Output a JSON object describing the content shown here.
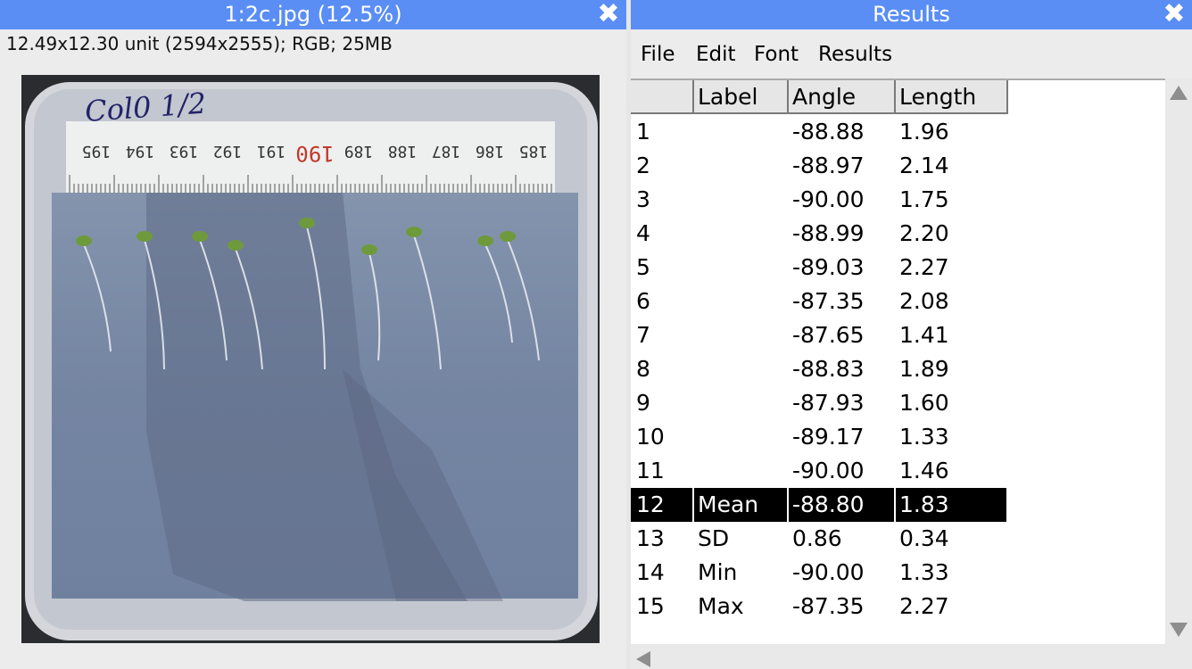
{
  "image_window": {
    "title": "1:2c.jpg (12.5%)",
    "info": "12.49x12.30 unit (2594x2555); RGB; 25MB",
    "handwriting": "Col0 1/2",
    "ruler_numbers": [
      "195",
      "194",
      "193",
      "192",
      "191",
      "190",
      "189",
      "188",
      "187",
      "186",
      "185"
    ]
  },
  "results_window": {
    "title": "Results",
    "menu": [
      "File",
      "Edit",
      "Font",
      "Results"
    ],
    "columns": [
      "",
      "Label",
      "Angle",
      "Length"
    ],
    "rows": [
      {
        "n": "1",
        "label": "",
        "angle": "-88.88",
        "length": "1.96"
      },
      {
        "n": "2",
        "label": "",
        "angle": "-88.97",
        "length": "2.14"
      },
      {
        "n": "3",
        "label": "",
        "angle": "-90.00",
        "length": "1.75"
      },
      {
        "n": "4",
        "label": "",
        "angle": "-88.99",
        "length": "2.20"
      },
      {
        "n": "5",
        "label": "",
        "angle": "-89.03",
        "length": "2.27"
      },
      {
        "n": "6",
        "label": "",
        "angle": "-87.35",
        "length": "2.08"
      },
      {
        "n": "7",
        "label": "",
        "angle": "-87.65",
        "length": "1.41"
      },
      {
        "n": "8",
        "label": "",
        "angle": "-88.83",
        "length": "1.89"
      },
      {
        "n": "9",
        "label": "",
        "angle": "-87.93",
        "length": "1.60"
      },
      {
        "n": "10",
        "label": "",
        "angle": "-89.17",
        "length": "1.33"
      },
      {
        "n": "11",
        "label": "",
        "angle": "-90.00",
        "length": "1.46"
      },
      {
        "n": "12",
        "label": "Mean",
        "angle": "-88.80",
        "length": "1.83",
        "selected": true
      },
      {
        "n": "13",
        "label": "SD",
        "angle": "0.86",
        "length": "0.34"
      },
      {
        "n": "14",
        "label": "Min",
        "angle": "-90.00",
        "length": "1.33"
      },
      {
        "n": "15",
        "label": "Max",
        "angle": "-87.35",
        "length": "2.27"
      }
    ]
  },
  "colors": {
    "titlebar": "#5a8ef5",
    "selection": "#000000"
  }
}
